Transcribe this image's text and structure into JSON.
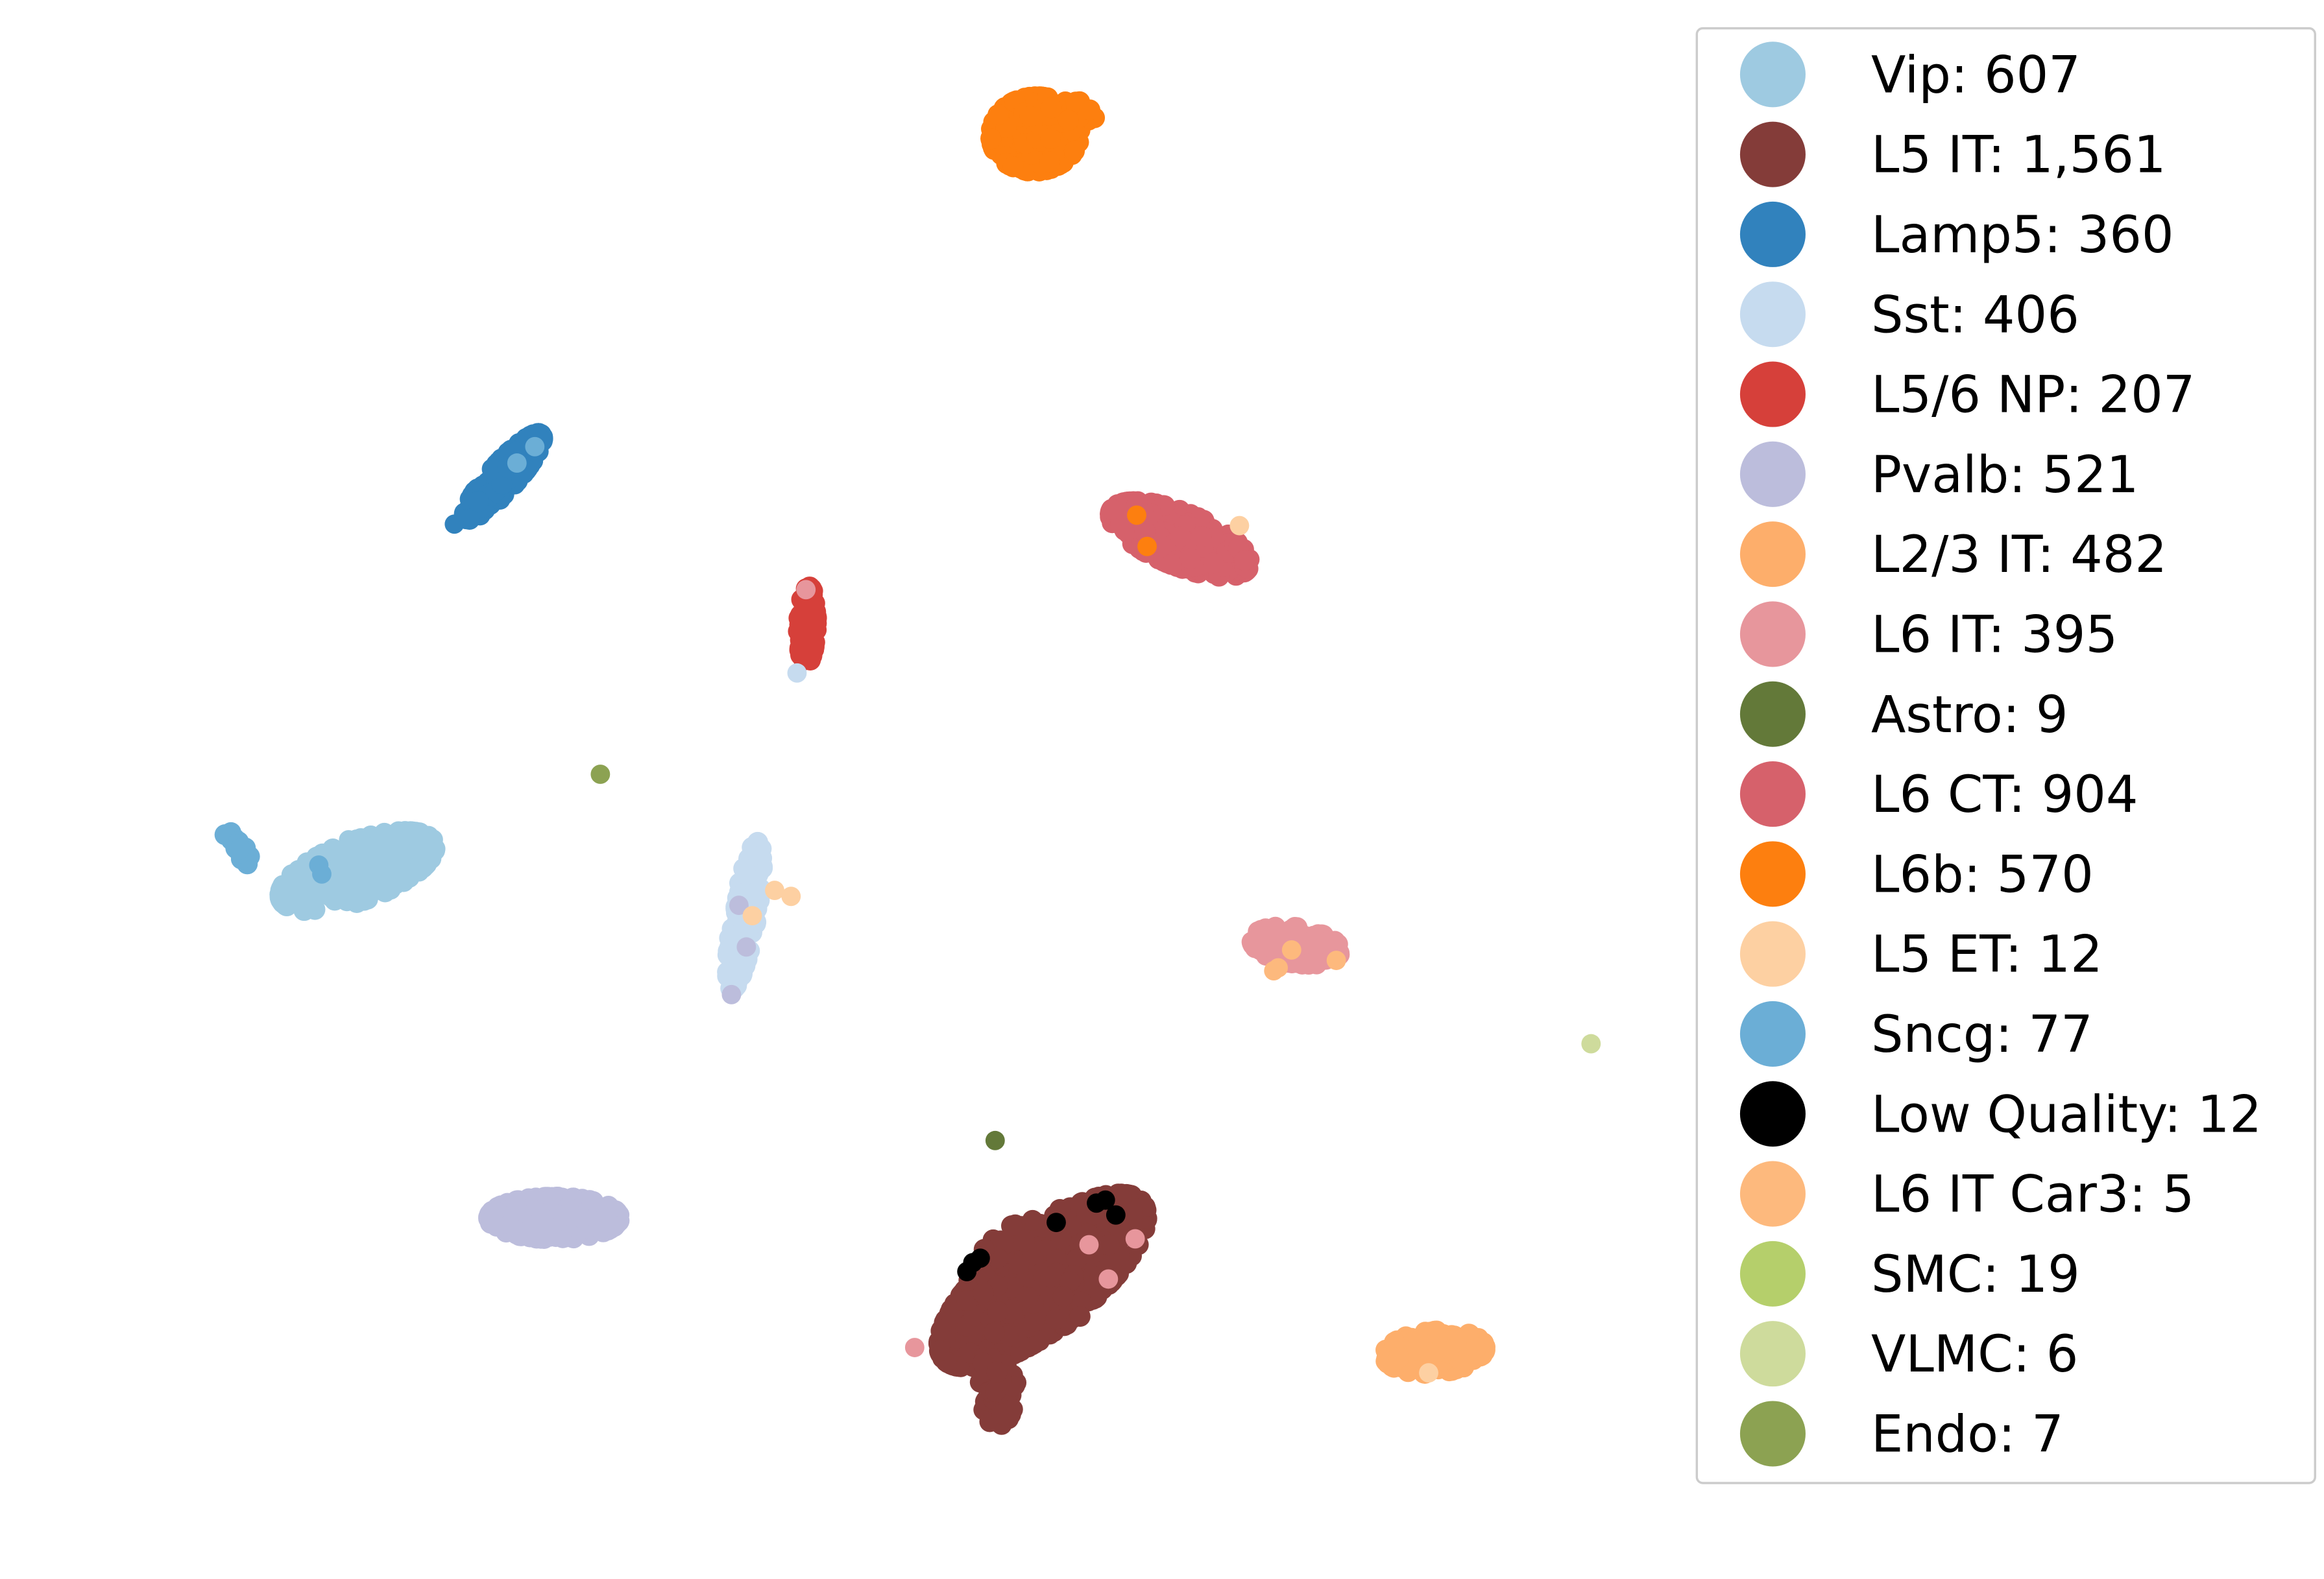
{
  "chart_data": {
    "type": "scatter",
    "title": "",
    "xlabel": "",
    "ylabel": "",
    "axes_visible": false,
    "grid": false,
    "legend_placement": "right",
    "series": [
      {
        "name": "Vip",
        "count": "607",
        "label": "Vip: 607",
        "color": "#9ecae1",
        "clusters": [
          {
            "cx": 240,
            "cy": 585,
            "rx": 55,
            "ry": 20,
            "angle": -20,
            "n": 260
          }
        ],
        "points": [
          [
            207,
            603
          ],
          [
            234,
            564
          ]
        ]
      },
      {
        "name": "L5 IT",
        "count": "1,561",
        "label": "L5 IT: 1,561",
        "color": "#843c39",
        "clusters": [
          {
            "cx": 700,
            "cy": 860,
            "rx": 85,
            "ry": 32,
            "angle": -38,
            "n": 520
          },
          {
            "cx": 700,
            "cy": 855,
            "rx": 55,
            "ry": 38,
            "angle": -30,
            "n": 120
          },
          {
            "cx": 670,
            "cy": 930,
            "rx": 12,
            "ry": 28,
            "angle": 0,
            "n": 60
          }
        ],
        "points": []
      },
      {
        "name": "Lamp5",
        "count": "360",
        "label": "Lamp5: 360",
        "color": "#3182bd",
        "clusters": [
          {
            "cx": 338,
            "cy": 320,
            "rx": 38,
            "ry": 9,
            "angle": -48,
            "n": 160
          }
        ],
        "points": [
          [
            305,
            352
          ]
        ]
      },
      {
        "name": "Sst",
        "count": "406",
        "label": "Sst: 406",
        "color": "#c6dbef",
        "clusters": [
          {
            "cx": 500,
            "cy": 615,
            "rx": 50,
            "ry": 8,
            "angle": -80,
            "n": 170
          }
        ],
        "points": [
          [
            535,
            452
          ]
        ]
      },
      {
        "name": "L5/6 NP",
        "count": "207",
        "label": "L5/6 NP: 207",
        "color": "#d6403a",
        "clusters": [
          {
            "cx": 542,
            "cy": 420,
            "rx": 26,
            "ry": 6,
            "angle": -88,
            "n": 100
          }
        ],
        "points": []
      },
      {
        "name": "Pvalb",
        "count": "521",
        "label": "Pvalb: 521",
        "color": "#bcbddc",
        "clusters": [
          {
            "cx": 372,
            "cy": 818,
            "rx": 44,
            "ry": 14,
            "angle": 0,
            "n": 240
          }
        ],
        "points": [
          [
            496,
            608
          ],
          [
            501,
            636
          ],
          [
            491,
            668
          ]
        ]
      },
      {
        "name": "L2/3 IT",
        "count": "482",
        "label": "L2/3 IT: 482",
        "color": "#fdae6b",
        "clusters": [
          {
            "cx": 963,
            "cy": 908,
            "rx": 34,
            "ry": 14,
            "angle": -5,
            "n": 210
          }
        ],
        "points": []
      },
      {
        "name": "L6 IT",
        "count": "395",
        "label": "L6 IT: 395",
        "color": "#e7969c",
        "clusters": [
          {
            "cx": 870,
            "cy": 635,
            "rx": 30,
            "ry": 12,
            "angle": 8,
            "n": 170
          }
        ],
        "points": [
          [
            614,
            905
          ],
          [
            731,
            836
          ],
          [
            744,
            859
          ],
          [
            762,
            832
          ],
          [
            541,
            396
          ]
        ]
      },
      {
        "name": "Astro",
        "count": "9",
        "label": "Astro: 9",
        "color": "#637939",
        "clusters": [],
        "points": [
          [
            668,
            766
          ]
        ]
      },
      {
        "name": "L6 CT",
        "count": "904",
        "label": "L6 CT: 904",
        "color": "#d6616b",
        "clusters": [
          {
            "cx": 792,
            "cy": 362,
            "rx": 50,
            "ry": 18,
            "angle": 22,
            "n": 300
          }
        ],
        "points": []
      },
      {
        "name": "L6b",
        "count": "570",
        "label": "L6b: 570",
        "color": "#fd7f0f",
        "clusters": [
          {
            "cx": 695,
            "cy": 90,
            "rx": 30,
            "ry": 25,
            "angle": -5,
            "n": 240
          },
          {
            "cx": 720,
            "cy": 76,
            "rx": 16,
            "ry": 8,
            "angle": 0,
            "n": 30
          }
        ],
        "points": [
          [
            763,
            346
          ],
          [
            770,
            367
          ]
        ]
      },
      {
        "name": "L5 ET",
        "count": "12",
        "label": "L5 ET: 12",
        "color": "#fdd0a2",
        "clusters": [],
        "points": [
          [
            832,
            353
          ],
          [
            505,
            615
          ],
          [
            520,
            598
          ],
          [
            531,
            602
          ],
          [
            959,
            922
          ]
        ]
      },
      {
        "name": "Sncg",
        "count": "77",
        "label": "Sncg: 77",
        "color": "#6baed6",
        "clusters": [
          {
            "cx": 161,
            "cy": 570,
            "rx": 15,
            "ry": 4,
            "angle": 50,
            "n": 30
          }
        ],
        "points": [
          [
            214,
            581
          ],
          [
            216,
            587
          ],
          [
            347,
            311
          ],
          [
            359,
            300
          ]
        ]
      },
      {
        "name": "Low Quality",
        "count": "12",
        "label": "Low Quality: 12",
        "color": "#000000",
        "clusters": [],
        "points": [
          [
            653,
            848
          ],
          [
            658,
            845
          ],
          [
            649,
            854
          ],
          [
            709,
            821
          ],
          [
            736,
            808
          ],
          [
            742,
            806
          ],
          [
            749,
            816
          ]
        ]
      },
      {
        "name": "L6 IT Car3",
        "count": "5",
        "label": "L6 IT Car3: 5",
        "color": "#fdb97d",
        "clusters": [],
        "points": [
          [
            867,
            638
          ],
          [
            897,
            645
          ],
          [
            858,
            650
          ],
          [
            855,
            652
          ]
        ]
      },
      {
        "name": "SMC",
        "count": "19",
        "label": "SMC: 19",
        "color": "#b5cf6b",
        "clusters": [],
        "points": []
      },
      {
        "name": "VLMC",
        "count": "6",
        "label": "VLMC: 6",
        "color": "#cedb9c",
        "clusters": [],
        "points": [
          [
            1068,
            701
          ]
        ]
      },
      {
        "name": "Endo",
        "count": "7",
        "label": "Endo: 7",
        "color": "#8ca252",
        "clusters": [],
        "points": [
          [
            403,
            520
          ]
        ]
      }
    ]
  }
}
